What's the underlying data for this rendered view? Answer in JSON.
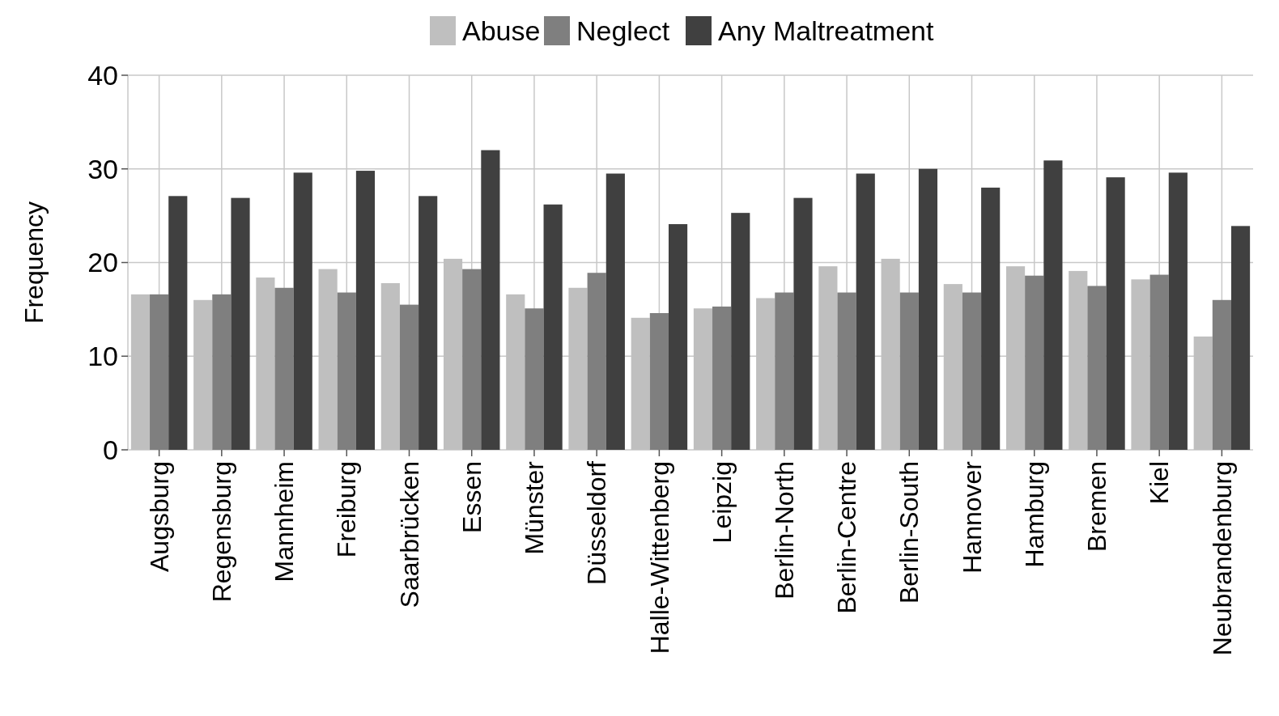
{
  "chart_data": {
    "type": "bar",
    "ylabel": "Frequency",
    "categories": [
      "Augsburg",
      "Regensburg",
      "Mannheim",
      "Freiburg",
      "Saarbrücken",
      "Essen",
      "Münster",
      "Düsseldorf",
      "Halle-Wittenberg",
      "Leipzig",
      "Berlin-North",
      "Berlin-Centre",
      "Berlin-South",
      "Hannover",
      "Hamburg",
      "Bremen",
      "Kiel",
      "Neubrandenburg"
    ],
    "series": [
      {
        "name": "Abuse",
        "color": "#bfbfbf",
        "values": [
          16.6,
          16.0,
          18.4,
          19.3,
          17.8,
          20.4,
          16.6,
          17.3,
          14.1,
          15.1,
          16.2,
          19.6,
          20.4,
          17.7,
          19.6,
          19.1,
          18.2,
          12.1
        ]
      },
      {
        "name": "Neglect",
        "color": "#7f7f7f",
        "values": [
          16.6,
          16.6,
          17.3,
          16.8,
          15.5,
          19.3,
          15.1,
          18.9,
          14.6,
          15.3,
          16.8,
          16.8,
          16.8,
          16.8,
          18.6,
          17.5,
          18.7,
          16.0
        ]
      },
      {
        "name": "Any Maltreatment",
        "color": "#404040",
        "values": [
          27.1,
          26.9,
          29.6,
          29.8,
          27.1,
          32.0,
          26.2,
          29.5,
          24.1,
          25.3,
          26.9,
          29.5,
          30.0,
          28.0,
          30.9,
          29.1,
          29.6,
          23.9
        ]
      }
    ],
    "ylim": [
      0,
      40
    ],
    "yticks": [
      0,
      10,
      20,
      30,
      40
    ],
    "grid": true,
    "legend": "top"
  }
}
